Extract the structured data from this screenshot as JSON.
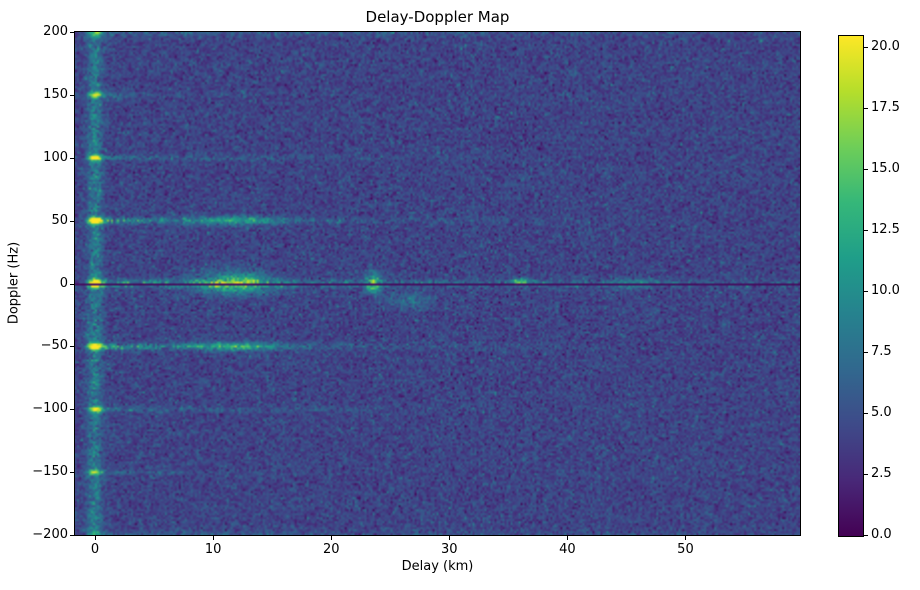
{
  "figure": {
    "background": "#ffffff"
  },
  "chart_data": {
    "type": "heatmap",
    "title": "Delay-Doppler Map",
    "xlabel": "Delay (km)",
    "ylabel": "Doppler (Hz)",
    "xlim": [
      -1.7,
      59.7
    ],
    "ylim": [
      -200,
      200
    ],
    "x_ticks": [
      {
        "v": 0,
        "label": "0"
      },
      {
        "v": 10,
        "label": "10"
      },
      {
        "v": 20,
        "label": "20"
      },
      {
        "v": 30,
        "label": "30"
      },
      {
        "v": 40,
        "label": "40"
      },
      {
        "v": 50,
        "label": "50"
      }
    ],
    "y_ticks": [
      {
        "v": 200,
        "label": "200"
      },
      {
        "v": 150,
        "label": "150"
      },
      {
        "v": 100,
        "label": "100"
      },
      {
        "v": 50,
        "label": "50"
      },
      {
        "v": 0,
        "label": "0"
      },
      {
        "v": -50,
        "label": "−50"
      },
      {
        "v": -100,
        "label": "−100"
      },
      {
        "v": -150,
        "label": "−150"
      },
      {
        "v": -200,
        "label": "−200"
      }
    ],
    "colorbar": {
      "colormap": "viridis",
      "vmin": 0.0,
      "vmax": 20.5,
      "ticks": [
        {
          "v": 0.0,
          "label": "0.0"
        },
        {
          "v": 2.5,
          "label": "2.5"
        },
        {
          "v": 5.0,
          "label": "5.0"
        },
        {
          "v": 7.5,
          "label": "7.5"
        },
        {
          "v": 10.0,
          "label": "10.0"
        },
        {
          "v": 12.5,
          "label": "12.5"
        },
        {
          "v": 15.0,
          "label": "15.0"
        },
        {
          "v": 17.5,
          "label": "17.5"
        },
        {
          "v": 20.0,
          "label": "20.0"
        }
      ]
    },
    "colormap_stops": [
      "#440154",
      "#482878",
      "#3e4a89",
      "#31688e",
      "#26828e",
      "#1f9e89",
      "#35b779",
      "#6ece58",
      "#b5de2b",
      "#fde725"
    ],
    "background_noise": {
      "mean": 4.2,
      "std": 1.25,
      "seed": 42
    },
    "features": {
      "vertical_stripe": {
        "delay": 0,
        "sigma_km": 0.45,
        "amplitude": 4.5
      },
      "zero_doppler_dark_line": {
        "doppler": 0,
        "value": 0.5
      },
      "horizontal_stripes": [
        {
          "doppler": 0,
          "amplitude": 7.5,
          "sigma_hz": 2.2,
          "decay_km": 45,
          "extent_km": 60,
          "spot_amplitude": 21
        },
        {
          "doppler": 50,
          "amplitude": 7.0,
          "sigma_hz": 1.8,
          "decay_km": 16,
          "extent_km": 48,
          "spot_amplitude": 22
        },
        {
          "doppler": -50,
          "amplitude": 7.5,
          "sigma_hz": 1.8,
          "decay_km": 16,
          "extent_km": 48,
          "spot_amplitude": 22
        },
        {
          "doppler": 100,
          "amplitude": 4.5,
          "sigma_hz": 1.4,
          "decay_km": 14,
          "extent_km": 46,
          "spot_amplitude": 15
        },
        {
          "doppler": -100,
          "amplitude": 4.5,
          "sigma_hz": 1.4,
          "decay_km": 14,
          "extent_km": 38,
          "spot_amplitude": 13
        },
        {
          "doppler": 150,
          "amplitude": 3.5,
          "sigma_hz": 1.4,
          "decay_km": 8,
          "extent_km": 16,
          "spot_amplitude": 12
        },
        {
          "doppler": -150,
          "amplitude": 3.0,
          "sigma_hz": 1.4,
          "decay_km": 8,
          "extent_km": 20,
          "spot_amplitude": 11
        },
        {
          "doppler": 200,
          "amplitude": 2.8,
          "sigma_hz": 2.5,
          "decay_km": 40,
          "extent_km": 60,
          "spot_amplitude": 6
        },
        {
          "doppler": -200,
          "amplitude": 2.2,
          "sigma_hz": 2.5,
          "decay_km": 40,
          "extent_km": 60,
          "spot_amplitude": 5
        }
      ],
      "blobs": [
        {
          "delay": 11.8,
          "doppler": 0,
          "amplitude": 10.0,
          "sigma_delay": 2.2,
          "sigma_doppler": 6.0
        },
        {
          "delay": 12.0,
          "doppler": 50,
          "amplitude": 6.0,
          "sigma_delay": 2.5,
          "sigma_doppler": 2.5
        },
        {
          "delay": 12.0,
          "doppler": -50,
          "amplitude": 7.0,
          "sigma_delay": 2.5,
          "sigma_doppler": 2.5
        },
        {
          "delay": 23.6,
          "doppler": 3,
          "amplitude": 8.0,
          "sigma_delay": 0.45,
          "sigma_doppler": 5.0
        },
        {
          "delay": 23.6,
          "doppler": -5,
          "amplitude": 6.0,
          "sigma_delay": 0.45,
          "sigma_doppler": 3.0
        },
        {
          "delay": 36.0,
          "doppler": 1.5,
          "amplitude": 11.0,
          "sigma_delay": 0.5,
          "sigma_doppler": 1.8
        },
        {
          "delay": 26.5,
          "doppler": -14,
          "amplitude": 3.5,
          "sigma_delay": 1.2,
          "sigma_doppler": 5.0
        },
        {
          "delay": 45.5,
          "doppler": 0,
          "amplitude": 4.0,
          "sigma_delay": 1.2,
          "sigma_doppler": 3.0
        }
      ]
    }
  }
}
